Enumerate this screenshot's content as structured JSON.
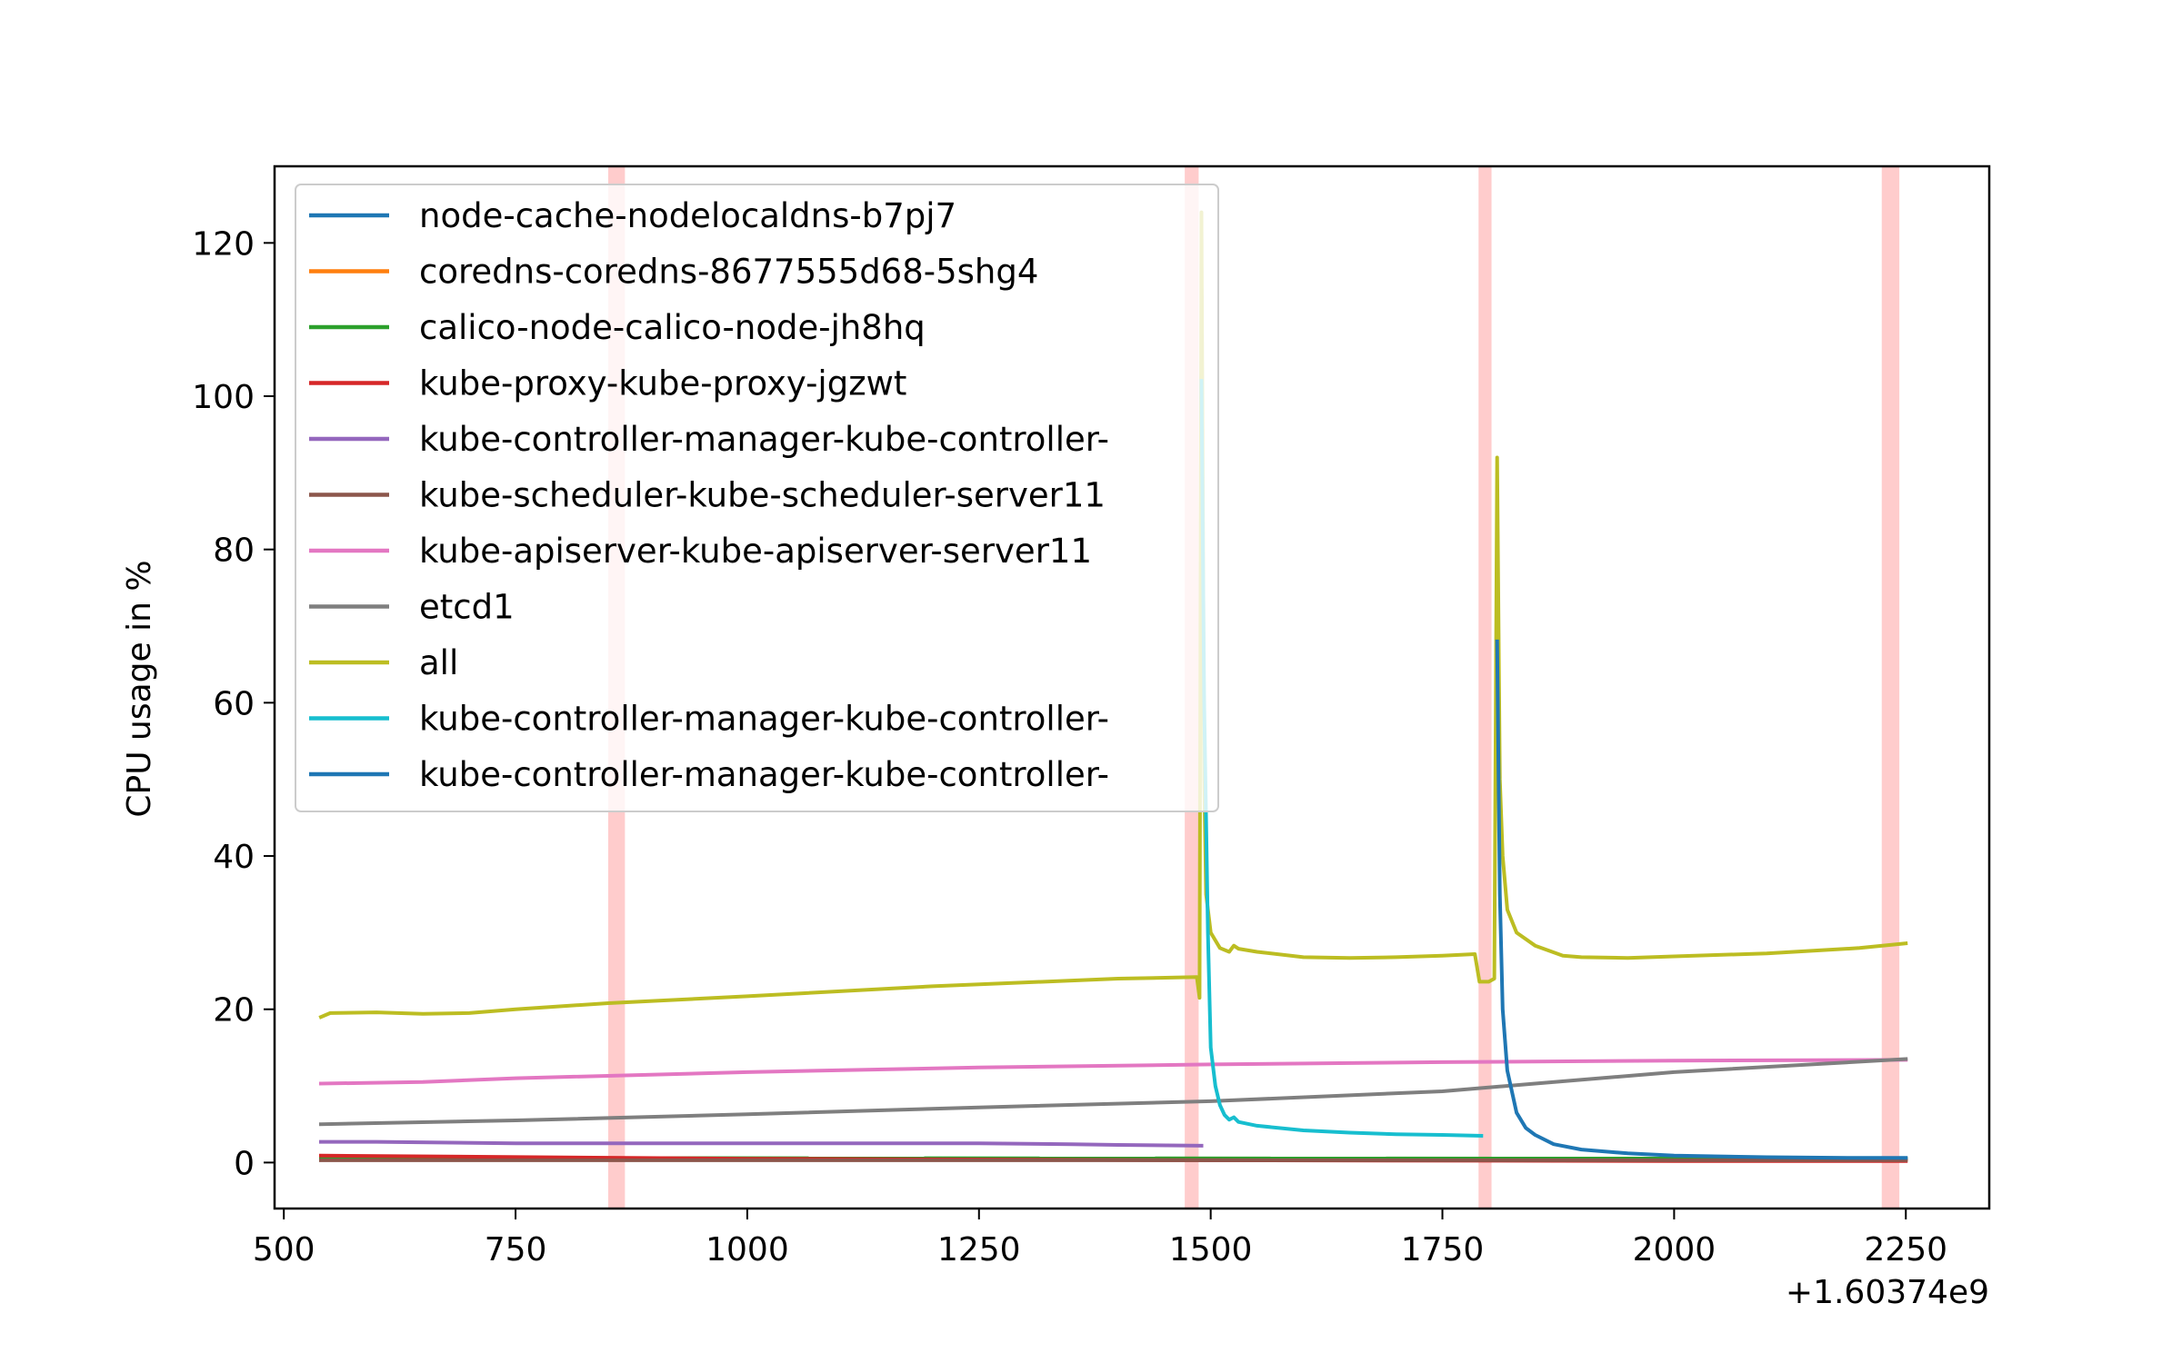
{
  "chart_data": {
    "type": "line",
    "xlabel": "",
    "ylabel": "CPU usage in %",
    "x_offset_label": "+1.60374e9",
    "xlim": [
      490,
      2340
    ],
    "ylim": [
      -6,
      130
    ],
    "x_ticks": [
      500,
      750,
      1000,
      1250,
      1500,
      1750,
      2000,
      2250
    ],
    "x_tick_labels": [
      "500",
      "750",
      "1000",
      "1250",
      "1500",
      "1750",
      "2000",
      "2250"
    ],
    "y_ticks": [
      0,
      20,
      40,
      60,
      80,
      100,
      120
    ],
    "y_tick_labels": [
      "0",
      "20",
      "40",
      "60",
      "80",
      "100",
      "120"
    ],
    "grid": false,
    "legend_position": "upper-left",
    "shaded_bands": [
      [
        850,
        868
      ],
      [
        1472,
        1487
      ],
      [
        1789,
        1803
      ],
      [
        2224,
        2243
      ]
    ],
    "band_color": "#ffcccc",
    "series": [
      {
        "name": "node-cache-nodelocaldns-b7pj7",
        "color": "#1f77b4",
        "x": [
          540,
          2250
        ],
        "y": [
          0.5,
          0.5
        ]
      },
      {
        "name": "coredns-coredns-8677555d68-5shg4",
        "color": "#ff7f0e",
        "x": [
          540,
          2250
        ],
        "y": [
          0.4,
          0.4
        ]
      },
      {
        "name": "calico-node-calico-node-jh8hq",
        "color": "#2ca02c",
        "x": [
          540,
          2250
        ],
        "y": [
          0.6,
          0.5
        ]
      },
      {
        "name": "kube-proxy-kube-proxy-jgzwt",
        "color": "#d62728",
        "x": [
          540,
          1000,
          1500,
          2000,
          2250
        ],
        "y": [
          0.9,
          0.5,
          0.3,
          0.2,
          0.2
        ]
      },
      {
        "name": "kube-controller-manager-kube-controller-",
        "color": "#9467bd",
        "x": [
          540,
          600,
          750,
          1000,
          1250,
          1350,
          1400,
          1490
        ],
        "y": [
          2.7,
          2.7,
          2.5,
          2.5,
          2.5,
          2.4,
          2.3,
          2.2
        ]
      },
      {
        "name": "kube-scheduler-kube-scheduler-server11",
        "color": "#8c564b",
        "x": [
          540,
          2250
        ],
        "y": [
          0.3,
          0.3
        ]
      },
      {
        "name": "kube-apiserver-kube-apiserver-server11",
        "color": "#e377c2",
        "x": [
          540,
          650,
          750,
          1000,
          1250,
          1500,
          1750,
          2000,
          2250
        ],
        "y": [
          10.3,
          10.5,
          11.0,
          11.8,
          12.4,
          12.8,
          13.1,
          13.3,
          13.4
        ]
      },
      {
        "name": "etcd1",
        "color": "#7f7f7f",
        "x": [
          540,
          750,
          1000,
          1250,
          1500,
          1750,
          1850,
          2000,
          2250
        ],
        "y": [
          5.0,
          5.5,
          6.3,
          7.2,
          8.0,
          9.3,
          10.3,
          11.8,
          13.5
        ]
      },
      {
        "name": "all",
        "color": "#bcbd22",
        "x": [
          540,
          550,
          600,
          650,
          700,
          750,
          850,
          1000,
          1200,
          1400,
          1485,
          1488,
          1490,
          1493,
          1495,
          1500,
          1510,
          1520,
          1525,
          1530,
          1550,
          1600,
          1650,
          1700,
          1750,
          1785,
          1790,
          1800,
          1806,
          1809,
          1812,
          1815,
          1820,
          1830,
          1850,
          1880,
          1900,
          1950,
          2000,
          2100,
          2200,
          2250
        ],
        "y": [
          19.0,
          19.5,
          19.6,
          19.4,
          19.5,
          20.0,
          20.8,
          21.7,
          23.0,
          24.0,
          24.2,
          21.5,
          124.0,
          50.0,
          35.0,
          30.0,
          28.0,
          27.5,
          28.3,
          27.9,
          27.5,
          26.8,
          26.7,
          26.8,
          27.0,
          27.2,
          23.6,
          23.6,
          24.0,
          92.0,
          50.0,
          40.0,
          33.0,
          30.0,
          28.3,
          27.0,
          26.8,
          26.7,
          26.9,
          27.3,
          28.0,
          28.6
        ]
      },
      {
        "name": "kube-controller-manager-kube-controller-",
        "color": "#17becf",
        "x": [
          1490,
          1493,
          1497,
          1500,
          1505,
          1510,
          1515,
          1520,
          1525,
          1530,
          1550,
          1600,
          1650,
          1700,
          1750,
          1792
        ],
        "y": [
          102.0,
          60.0,
          30.0,
          15.0,
          10.0,
          7.5,
          6.2,
          5.6,
          5.9,
          5.3,
          4.8,
          4.2,
          3.9,
          3.7,
          3.6,
          3.5
        ]
      },
      {
        "name": "kube-controller-manager-kube-controller-",
        "color": "#1f77b4",
        "x": [
          1809,
          1812,
          1815,
          1820,
          1830,
          1840,
          1850,
          1870,
          1900,
          1950,
          2000,
          2100,
          2200,
          2250
        ],
        "y": [
          68.0,
          35.0,
          20.0,
          12.0,
          6.5,
          4.5,
          3.6,
          2.4,
          1.7,
          1.2,
          0.9,
          0.7,
          0.6,
          0.6
        ]
      }
    ]
  }
}
